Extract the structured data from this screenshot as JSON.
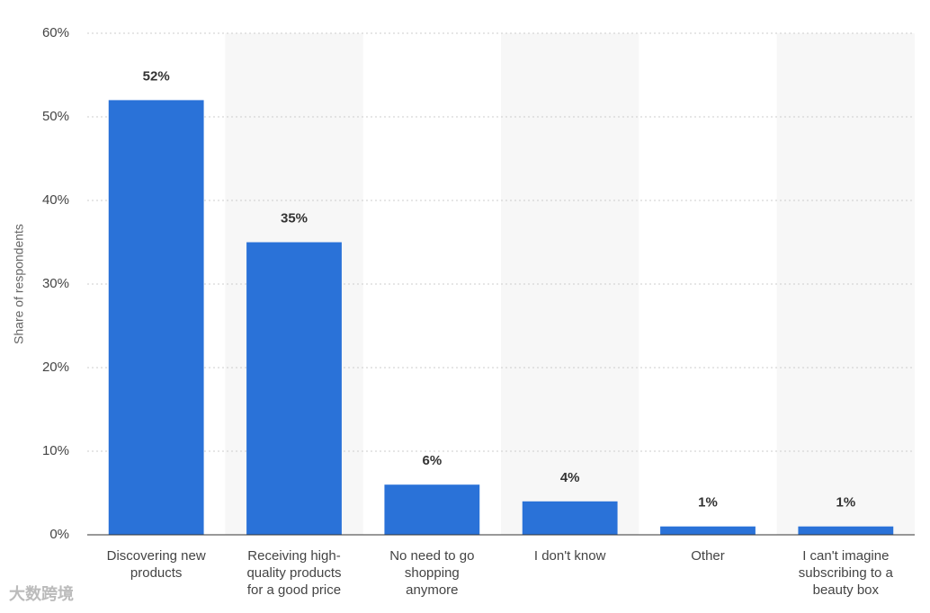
{
  "chart_data": {
    "type": "bar",
    "y_label": "Share of respondents",
    "categories": [
      "Discovering new products",
      "Receiving high-quality products for a good price",
      "No need to go shopping anymore",
      "I don't know",
      "Other",
      "I can't imagine subscribing to a beauty box"
    ],
    "values": [
      52,
      35,
      6,
      4,
      1,
      1
    ],
    "value_labels": [
      "52%",
      "35%",
      "6%",
      "4%",
      "1%",
      "1%"
    ],
    "color": "#2a72d8",
    "ylim": [
      0,
      60
    ],
    "yticks": [
      {
        "value": 0,
        "label": "0%"
      },
      {
        "value": 10,
        "label": "10%"
      },
      {
        "value": 20,
        "label": "20%"
      },
      {
        "value": 30,
        "label": "30%"
      },
      {
        "value": 40,
        "label": "40%"
      },
      {
        "value": 50,
        "label": "50%"
      },
      {
        "value": 60,
        "label": "60%"
      }
    ],
    "grid": true
  },
  "watermark": "大数跨境"
}
